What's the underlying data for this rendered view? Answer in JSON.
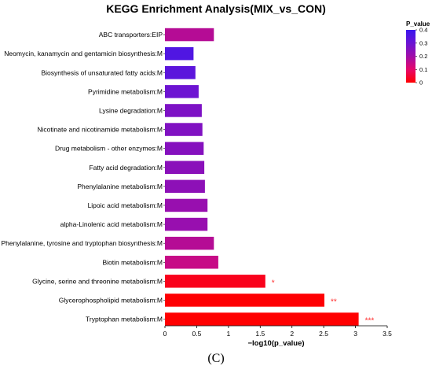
{
  "chart_data": {
    "type": "bar",
    "orientation": "horizontal",
    "title": "KEGG Enrichment Analysis(MIX_vs_CON)",
    "xlabel": "−log10(p_value)",
    "ylabel": "",
    "xlim": [
      0,
      3.5
    ],
    "xticks": [
      "0",
      "0.5",
      "1",
      "1.5",
      "2",
      "2.5",
      "3",
      "3.5"
    ],
    "grid": false,
    "categories": [
      "ABC transporters:EIP",
      "Neomycin, kanamycin and gentamicin biosynthesis:M",
      "Biosynthesis of unsaturated fatty acids:M",
      "Pyrimidine metabolism:M",
      "Lysine degradation:M",
      "Nicotinate and nicotinamide metabolism:M",
      "Drug metabolism - other enzymes:M",
      "Fatty acid degradation:M",
      "Phenylalanine metabolism:M",
      "Lipoic acid metabolism:M",
      "alpha-Linolenic acid metabolism:M",
      "Phenylalanine, tyrosine and tryptophan biosynthesis:M",
      "Biotin metabolism:M",
      "Glycine, serine and threonine metabolism:M",
      "Glycerophospholipid metabolism:M",
      "Tryptophan metabolism:M"
    ],
    "values": [
      0.77,
      0.45,
      0.48,
      0.53,
      0.58,
      0.59,
      0.61,
      0.62,
      0.63,
      0.67,
      0.67,
      0.77,
      0.84,
      1.58,
      2.51,
      3.05
    ],
    "p_values": [
      0.17,
      0.355,
      0.33,
      0.295,
      0.265,
      0.26,
      0.25,
      0.24,
      0.235,
      0.215,
      0.215,
      0.17,
      0.145,
      0.026,
      0.0031,
      0.0009
    ],
    "significance": [
      "",
      "",
      "",
      "",
      "",
      "",
      "",
      "",
      "",
      "",
      "",
      "",
      "",
      "*",
      "**",
      "***"
    ],
    "significance_color": "#ff2a2a",
    "legend": {
      "title": "P_value",
      "placement": "top-right",
      "ticks": [
        "0.4",
        "0.3",
        "0.2",
        "0.1",
        "0"
      ],
      "range": [
        0,
        0.4
      ],
      "colors": [
        "#ff0000",
        "#3a17ee"
      ]
    }
  },
  "caption": "(C)"
}
